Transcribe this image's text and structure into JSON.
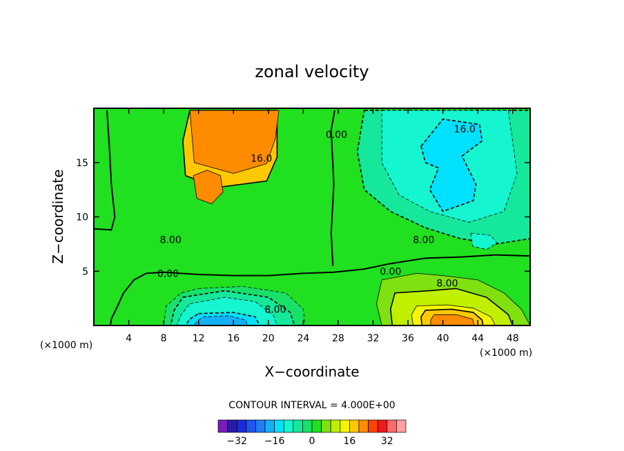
{
  "chart_data": {
    "type": "heatmap",
    "title": "zonal velocity",
    "xlabel": "X−coordinate",
    "ylabel": "Z−coordinate",
    "x_unit": "(×1000 m)",
    "z_unit": "(×1000 m)",
    "xlim": [
      0,
      50
    ],
    "ylim": [
      0,
      20
    ],
    "x_ticks": [
      4,
      8,
      12,
      16,
      20,
      24,
      28,
      32,
      36,
      40,
      44,
      48
    ],
    "y_ticks": [
      5,
      10,
      15
    ],
    "contour_interval_text": "CONTOUR INTERVAL = 4.000E+00",
    "contour_interval": 4.0,
    "contour_labels": [
      {
        "text": "16.0",
        "x": 19.2,
        "z": 15.4
      },
      {
        "text": "16.0",
        "x": 42.5,
        "z": 18.1
      },
      {
        "text": "0.00",
        "x": 27.8,
        "z": 17.6
      },
      {
        "text": "8.00",
        "x": 8.8,
        "z": 7.9
      },
      {
        "text": "8.00",
        "x": 37.8,
        "z": 7.9
      },
      {
        "text": "0.00",
        "x": 8.5,
        "z": 4.8
      },
      {
        "text": "0.00",
        "x": 34.0,
        "z": 5.0
      },
      {
        "text": "8.00",
        "x": 20.8,
        "z": 1.5
      },
      {
        "text": "8.00",
        "x": 40.5,
        "z": 3.9
      }
    ],
    "regions": [
      {
        "value": 16,
        "pts": [
          [
            11,
            19.8
          ],
          [
            21,
            19.8
          ],
          [
            21,
            15.5
          ],
          [
            19.8,
            13.3
          ],
          [
            14,
            12.7
          ],
          [
            10.5,
            13.8
          ],
          [
            10.2,
            17
          ]
        ]
      },
      {
        "value": 20,
        "pts": [
          [
            11.4,
            13.8
          ],
          [
            13,
            14.3
          ],
          [
            14.5,
            13.8
          ],
          [
            14.8,
            12.3
          ],
          [
            13.5,
            11.2
          ],
          [
            11.8,
            11.7
          ]
        ]
      },
      {
        "value": 20,
        "pts": [
          [
            11,
            19.8
          ],
          [
            21.2,
            19.8
          ],
          [
            20.8,
            17.2
          ],
          [
            19.8,
            14.9
          ],
          [
            16,
            14
          ],
          [
            11.5,
            15
          ]
        ]
      },
      {
        "value": -8,
        "pts": [
          [
            31,
            19.8
          ],
          [
            50,
            19.8
          ],
          [
            50,
            8
          ],
          [
            46,
            7.5
          ],
          [
            42,
            8
          ],
          [
            38,
            9
          ],
          [
            34,
            10.5
          ],
          [
            31,
            12.5
          ],
          [
            30.2,
            16
          ]
        ]
      },
      {
        "value": -12,
        "pts": [
          [
            33,
            19.8
          ],
          [
            47.5,
            19.8
          ],
          [
            48.5,
            14
          ],
          [
            47,
            10.5
          ],
          [
            43,
            9.5
          ],
          [
            38.5,
            10.5
          ],
          [
            35,
            12
          ],
          [
            33,
            15
          ]
        ]
      },
      {
        "value": -16,
        "pts": [
          [
            37.5,
            16.5
          ],
          [
            40,
            19
          ],
          [
            44.2,
            18.5
          ],
          [
            44.5,
            17
          ],
          [
            42.2,
            15.6
          ],
          [
            43.8,
            13
          ],
          [
            43.5,
            11.5
          ],
          [
            40,
            10.5
          ],
          [
            38.5,
            12.5
          ],
          [
            39.5,
            14.5
          ],
          [
            38,
            15
          ]
        ]
      },
      {
        "value": -12,
        "pts": [
          [
            43.2,
            8.5
          ],
          [
            45.5,
            8.3
          ],
          [
            46.2,
            7.6
          ],
          [
            45,
            7
          ],
          [
            43.4,
            7.3
          ]
        ]
      },
      {
        "value": -4,
        "pts": [
          [
            12,
            3.4
          ],
          [
            17,
            3.6
          ],
          [
            22,
            3
          ],
          [
            24,
            1.5
          ],
          [
            24.2,
            0
          ],
          [
            8,
            0
          ],
          [
            8.3,
            1.8
          ],
          [
            10,
            3
          ]
        ]
      },
      {
        "value": -8,
        "pts": [
          [
            10.2,
            2.6
          ],
          [
            15,
            3.2
          ],
          [
            20,
            2.6
          ],
          [
            22.5,
            1.2
          ],
          [
            23,
            0
          ],
          [
            8.8,
            0
          ],
          [
            9.2,
            1.4
          ]
        ]
      },
      {
        "value": -12,
        "pts": [
          [
            11,
            2
          ],
          [
            15,
            2.6
          ],
          [
            18.5,
            2.2
          ],
          [
            20.6,
            0.9
          ],
          [
            21,
            0
          ],
          [
            9.5,
            0
          ],
          [
            10,
            1
          ]
        ]
      },
      {
        "value": -16,
        "pts": [
          [
            12,
            1.1
          ],
          [
            16,
            1.2
          ],
          [
            18.5,
            0.8
          ],
          [
            19,
            0
          ],
          [
            10.5,
            0
          ],
          [
            11,
            0.6
          ]
        ]
      },
      {
        "value": -20,
        "pts": [
          [
            12.5,
            0.8
          ],
          [
            15.5,
            0.9
          ],
          [
            17.4,
            0.5
          ],
          [
            17.6,
            0
          ],
          [
            11.4,
            0
          ],
          [
            12,
            0.5
          ]
        ]
      },
      {
        "value": 4,
        "pts": [
          [
            33,
            4.2
          ],
          [
            37,
            4.8
          ],
          [
            40,
            4.6
          ],
          [
            44,
            4.2
          ],
          [
            47,
            3
          ],
          [
            49,
            1.5
          ],
          [
            50,
            0
          ],
          [
            33,
            0
          ],
          [
            32.4,
            2
          ]
        ]
      },
      {
        "value": 8,
        "pts": [
          [
            34.5,
            3
          ],
          [
            38.5,
            3.2
          ],
          [
            41.5,
            3.4
          ],
          [
            45,
            2.6
          ],
          [
            47.5,
            1
          ],
          [
            48,
            0
          ],
          [
            34.2,
            0
          ],
          [
            34,
            1.5
          ]
        ]
      },
      {
        "value": 12,
        "pts": [
          [
            37,
            1.8
          ],
          [
            40.5,
            1.9
          ],
          [
            43.5,
            1.6
          ],
          [
            45.5,
            0.8
          ],
          [
            46,
            0
          ],
          [
            36.6,
            0
          ],
          [
            36.4,
            1
          ]
        ]
      },
      {
        "value": 16,
        "pts": [
          [
            38,
            1.4
          ],
          [
            41,
            1.5
          ],
          [
            43.5,
            1.2
          ],
          [
            44.5,
            0.5
          ],
          [
            44.6,
            0
          ],
          [
            37.6,
            0
          ],
          [
            37.5,
            0.8
          ]
        ]
      },
      {
        "value": 20,
        "pts": [
          [
            39,
            1
          ],
          [
            41.5,
            1
          ],
          [
            43.4,
            0.6
          ],
          [
            43.6,
            0
          ],
          [
            38.6,
            0
          ],
          [
            38.6,
            0.5
          ]
        ]
      }
    ],
    "zero_contours": [
      [
        [
          27.6,
          19.8
        ],
        [
          27.2,
          18
        ],
        [
          27.5,
          13
        ],
        [
          27.2,
          8.5
        ],
        [
          27.4,
          5.5
        ]
      ],
      [
        [
          50,
          6.4
        ],
        [
          46,
          6.5
        ],
        [
          42,
          6.3
        ],
        [
          38,
          6.2
        ],
        [
          34,
          5.7
        ],
        [
          31,
          5.2
        ],
        [
          27.5,
          4.9
        ],
        [
          24,
          4.8
        ],
        [
          20,
          4.6
        ],
        [
          16,
          4.6
        ],
        [
          12,
          4.7
        ],
        [
          8,
          4.9
        ],
        [
          6,
          4.8
        ],
        [
          4.6,
          4.2
        ],
        [
          3.4,
          3
        ],
        [
          2.6,
          1.6
        ],
        [
          2,
          0.6
        ],
        [
          1.9,
          0
        ]
      ],
      [
        [
          0,
          8.9
        ],
        [
          2,
          8.8
        ],
        [
          2.4,
          10
        ],
        [
          2,
          13
        ],
        [
          1.8,
          16
        ],
        [
          1.5,
          19.8
        ]
      ]
    ],
    "colorbar": {
      "labels": [
        "−32",
        "−16",
        "0",
        "16",
        "32"
      ],
      "levels": [
        -36,
        -32,
        -28,
        -24,
        -20,
        -16,
        -12,
        -8,
        -4,
        0,
        4,
        8,
        12,
        16,
        20,
        24,
        28,
        32,
        36
      ],
      "colors": [
        "#7a1db8",
        "#2a1aa8",
        "#1a2ad8",
        "#1f55f0",
        "#1f80f5",
        "#14b0f5",
        "#00e0ff",
        "#15f5d0",
        "#15e89a",
        "#18e068",
        "#20e020",
        "#80e010",
        "#c0f000",
        "#f5f500",
        "#ffc800",
        "#ff8c00",
        "#ff4400",
        "#ee1a1a",
        "#ff6a6a",
        "#ffa0a0"
      ]
    },
    "background_value": 2
  }
}
